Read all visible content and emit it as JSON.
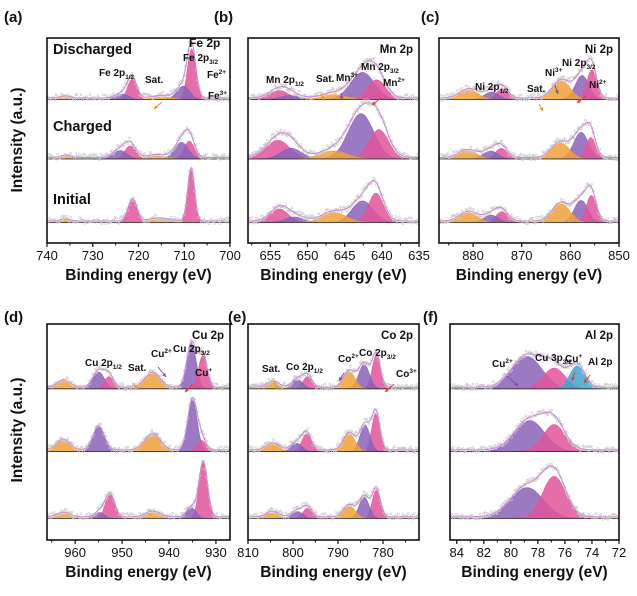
{
  "figure": {
    "shared_ylabel": "Intensity (a.u.)",
    "colors": {
      "envelope": "#c98fcf",
      "raw": "#c9c9c9",
      "baseline": "#2e2e2e",
      "pink_fill": "#e0559b",
      "purple_fill": "#8a62b8",
      "orange_fill": "#f0a13a",
      "blue_fill": "#3fa6cf",
      "arrow_red": "#e03b3b",
      "arrow_purple": "#7a4fb0",
      "arrow_orange": "#e8902a"
    }
  },
  "chart_data": [
    {
      "panel": "(a)",
      "type": "line",
      "title": "Fe 2p",
      "xlabel": "Binding energy (eV)",
      "ylabel": "Intensity (a.u.)",
      "xlim": [
        740,
        700
      ],
      "xticks": [
        740,
        730,
        720,
        710,
        700
      ],
      "trace_labels": [
        "Discharged",
        "Charged",
        "Initial"
      ],
      "annotations": [
        {
          "text": "Fe 2p",
          "sub": "",
          "sup": "",
          "x": 710
        },
        {
          "text": "Fe 2p",
          "sub": "3/2",
          "sup": "",
          "x": 710
        },
        {
          "text": "Fe 2p",
          "sub": "1/2",
          "sup": "",
          "x": 724
        },
        {
          "text": "Sat.",
          "sub": "",
          "sup": "",
          "x": 716
        },
        {
          "text": "Fe",
          "sub": "",
          "sup": "2+",
          "x": 707
        },
        {
          "text": "Fe",
          "sub": "",
          "sup": "3+",
          "x": 707
        }
      ],
      "traces": [
        {
          "name": "Discharged",
          "peaks": [
            {
              "c": 708.4,
              "h": 0.95,
              "w": 0.9,
              "color": "pink"
            },
            {
              "c": 710.2,
              "h": 0.25,
              "w": 1.4,
              "color": "purple"
            },
            {
              "c": 721.4,
              "h": 0.38,
              "w": 1.0,
              "color": "pink"
            },
            {
              "c": 723.5,
              "h": 0.1,
              "w": 1.4,
              "color": "purple"
            },
            {
              "c": 714.8,
              "h": 0.05,
              "w": 2.0,
              "color": "orange"
            },
            {
              "c": 736.0,
              "h": 0.04,
              "w": 1.0,
              "color": "orange"
            }
          ]
        },
        {
          "name": "Charged",
          "peaks": [
            {
              "c": 708.9,
              "h": 0.3,
              "w": 1.1,
              "color": "pink"
            },
            {
              "c": 710.6,
              "h": 0.28,
              "w": 1.5,
              "color": "purple"
            },
            {
              "c": 721.8,
              "h": 0.22,
              "w": 1.2,
              "color": "pink"
            },
            {
              "c": 724.0,
              "h": 0.14,
              "w": 1.5,
              "color": "purple"
            },
            {
              "c": 715.8,
              "h": 0.05,
              "w": 2.0,
              "color": "orange"
            },
            {
              "c": 736.0,
              "h": 0.04,
              "w": 1.0,
              "color": "orange"
            }
          ]
        },
        {
          "name": "Initial",
          "peaks": [
            {
              "c": 708.5,
              "h": 1.0,
              "w": 0.75,
              "color": "pink"
            },
            {
              "c": 721.3,
              "h": 0.42,
              "w": 0.95,
              "color": "pink"
            },
            {
              "c": 715.5,
              "h": 0.06,
              "w": 2.0,
              "color": "orange"
            },
            {
              "c": 736.0,
              "h": 0.04,
              "w": 1.0,
              "color": "orange"
            }
          ]
        }
      ]
    },
    {
      "panel": "(b)",
      "type": "line",
      "title": "Mn 2p",
      "xlabel": "Binding energy (eV)",
      "xlim": [
        658,
        635
      ],
      "xticks": [
        655,
        650,
        645,
        640,
        635
      ],
      "annotations": [
        {
          "text": "Mn 2p",
          "sub": "1/2",
          "sup": "",
          "x": 653
        },
        {
          "text": "Sat.",
          "sub": "",
          "sup": "",
          "x": 647
        },
        {
          "text": "Mn",
          "sub": "",
          "sup": "3+",
          "x": 643
        },
        {
          "text": "Mn 2p",
          "sub": "3/2",
          "sup": "",
          "x": 642
        },
        {
          "text": "Mn",
          "sub": "",
          "sup": "2+",
          "x": 640
        }
      ],
      "traces": [
        {
          "name": "Discharged",
          "peaks": [
            {
              "c": 642.6,
              "h": 0.55,
              "w": 1.6,
              "color": "purple"
            },
            {
              "c": 640.7,
              "h": 0.4,
              "w": 1.2,
              "color": "pink"
            },
            {
              "c": 653.8,
              "h": 0.18,
              "w": 1.3,
              "color": "pink"
            },
            {
              "c": 652.4,
              "h": 0.08,
              "w": 1.3,
              "color": "purple"
            },
            {
              "c": 646.5,
              "h": 0.1,
              "w": 1.6,
              "color": "orange"
            }
          ]
        },
        {
          "name": "Charged",
          "peaks": [
            {
              "c": 642.8,
              "h": 0.85,
              "w": 1.7,
              "color": "purple"
            },
            {
              "c": 640.4,
              "h": 0.55,
              "w": 1.3,
              "color": "pink"
            },
            {
              "c": 654.0,
              "h": 0.35,
              "w": 1.6,
              "color": "pink"
            },
            {
              "c": 652.2,
              "h": 0.2,
              "w": 1.4,
              "color": "purple"
            },
            {
              "c": 646.5,
              "h": 0.15,
              "w": 1.8,
              "color": "orange"
            }
          ]
        },
        {
          "name": "Initial",
          "peaks": [
            {
              "c": 642.6,
              "h": 0.48,
              "w": 1.4,
              "color": "purple"
            },
            {
              "c": 640.8,
              "h": 0.65,
              "w": 1.0,
              "color": "pink"
            },
            {
              "c": 653.8,
              "h": 0.3,
              "w": 1.2,
              "color": "pink"
            },
            {
              "c": 651.8,
              "h": 0.12,
              "w": 1.3,
              "color": "purple"
            },
            {
              "c": 646.4,
              "h": 0.22,
              "w": 1.6,
              "color": "orange"
            }
          ]
        }
      ]
    },
    {
      "panel": "(c)",
      "type": "line",
      "title": "Ni 2p",
      "xlabel": "Binding energy (eV)",
      "xlim": [
        887,
        850
      ],
      "xticks": [
        880,
        870,
        860,
        850
      ],
      "annotations": [
        {
          "text": "Ni 2p",
          "sub": "1/2",
          "sup": "",
          "x": 875
        },
        {
          "text": "Sat.",
          "sub": "",
          "sup": "",
          "x": 862
        },
        {
          "text": "Ni",
          "sub": "",
          "sup": "3+",
          "x": 858
        },
        {
          "text": "Ni 2p",
          "sub": "3/2",
          "sup": "",
          "x": 857
        },
        {
          "text": "Ni",
          "sub": "",
          "sup": "2+",
          "x": 855
        }
      ],
      "traces": [
        {
          "name": "Discharged",
          "peaks": [
            {
              "c": 857.6,
              "h": 0.45,
              "w": 1.4,
              "color": "purple"
            },
            {
              "c": 855.6,
              "h": 0.55,
              "w": 1.0,
              "color": "pink"
            },
            {
              "c": 861.8,
              "h": 0.35,
              "w": 1.8,
              "color": "orange"
            },
            {
              "c": 874.0,
              "h": 0.2,
              "w": 1.2,
              "color": "pink"
            },
            {
              "c": 876.2,
              "h": 0.14,
              "w": 1.5,
              "color": "purple"
            },
            {
              "c": 880.8,
              "h": 0.18,
              "w": 1.8,
              "color": "orange"
            }
          ]
        },
        {
          "name": "Charged",
          "peaks": [
            {
              "c": 857.8,
              "h": 0.5,
              "w": 1.5,
              "color": "purple"
            },
            {
              "c": 855.8,
              "h": 0.4,
              "w": 1.0,
              "color": "pink"
            },
            {
              "c": 862.0,
              "h": 0.3,
              "w": 1.8,
              "color": "orange"
            },
            {
              "c": 874.2,
              "h": 0.2,
              "w": 1.2,
              "color": "pink"
            },
            {
              "c": 876.4,
              "h": 0.15,
              "w": 1.5,
              "color": "purple"
            },
            {
              "c": 881.0,
              "h": 0.15,
              "w": 1.8,
              "color": "orange"
            }
          ]
        },
        {
          "name": "Initial",
          "peaks": [
            {
              "c": 857.8,
              "h": 0.45,
              "w": 1.4,
              "color": "purple"
            },
            {
              "c": 855.7,
              "h": 0.55,
              "w": 1.0,
              "color": "pink"
            },
            {
              "c": 861.9,
              "h": 0.38,
              "w": 1.8,
              "color": "orange"
            },
            {
              "c": 874.1,
              "h": 0.22,
              "w": 1.2,
              "color": "pink"
            },
            {
              "c": 876.3,
              "h": 0.15,
              "w": 1.5,
              "color": "purple"
            },
            {
              "c": 880.9,
              "h": 0.2,
              "w": 1.8,
              "color": "orange"
            }
          ]
        }
      ]
    },
    {
      "panel": "(d)",
      "type": "line",
      "title": "Cu 2p",
      "xlabel": "Binding energy (eV)",
      "xlim": [
        966,
        927
      ],
      "xticks": [
        960,
        950,
        940,
        930
      ],
      "annotations": [
        {
          "text": "Cu 2p",
          "sub": "1/2",
          "sup": "",
          "x": 954
        },
        {
          "text": "Sat.",
          "sub": "",
          "sup": "",
          "x": 944
        },
        {
          "text": "Cu",
          "sub": "",
          "sup": "2+",
          "x": 936
        },
        {
          "text": "Cu 2p",
          "sub": "3/2",
          "sup": "",
          "x": 934
        },
        {
          "text": "Cu",
          "sub": "",
          "sup": "+",
          "x": 932
        }
      ],
      "traces": [
        {
          "name": "Discharged",
          "peaks": [
            {
              "c": 935.2,
              "h": 0.75,
              "w": 1.0,
              "color": "purple"
            },
            {
              "c": 932.8,
              "h": 0.55,
              "w": 0.9,
              "color": "pink"
            },
            {
              "c": 955.0,
              "h": 0.28,
              "w": 1.2,
              "color": "purple"
            },
            {
              "c": 952.8,
              "h": 0.2,
              "w": 1.0,
              "color": "pink"
            },
            {
              "c": 943.5,
              "h": 0.25,
              "w": 1.6,
              "color": "orange"
            },
            {
              "c": 962.5,
              "h": 0.12,
              "w": 1.4,
              "color": "orange"
            }
          ]
        },
        {
          "name": "Charged",
          "peaks": [
            {
              "c": 935.0,
              "h": 0.85,
              "w": 1.0,
              "color": "purple"
            },
            {
              "c": 933.0,
              "h": 0.18,
              "w": 0.9,
              "color": "pink"
            },
            {
              "c": 955.0,
              "h": 0.4,
              "w": 1.2,
              "color": "purple"
            },
            {
              "c": 943.5,
              "h": 0.28,
              "w": 1.6,
              "color": "orange"
            },
            {
              "c": 962.5,
              "h": 0.18,
              "w": 1.4,
              "color": "orange"
            }
          ]
        },
        {
          "name": "Initial",
          "peaks": [
            {
              "c": 932.7,
              "h": 0.95,
              "w": 0.9,
              "color": "pink"
            },
            {
              "c": 935.2,
              "h": 0.18,
              "w": 1.0,
              "color": "purple"
            },
            {
              "c": 952.6,
              "h": 0.4,
              "w": 1.0,
              "color": "pink"
            },
            {
              "c": 954.8,
              "h": 0.1,
              "w": 1.0,
              "color": "purple"
            },
            {
              "c": 943.5,
              "h": 0.1,
              "w": 1.6,
              "color": "orange"
            },
            {
              "c": 962.5,
              "h": 0.08,
              "w": 1.4,
              "color": "orange"
            }
          ]
        }
      ]
    },
    {
      "panel": "(e)",
      "type": "line",
      "title": "Co 2p",
      "xlabel": "Binding energy (eV)",
      "xlim": [
        810,
        772
      ],
      "xticks": [
        810,
        800,
        790,
        780
      ],
      "annotations": [
        {
          "text": "Sat.",
          "sub": "",
          "sup": "",
          "x": 804
        },
        {
          "text": "Co 2p",
          "sub": "1/2",
          "sup": "",
          "x": 797
        },
        {
          "text": "Co",
          "sub": "",
          "sup": "2+",
          "x": 787
        },
        {
          "text": "Co 2p",
          "sub": "3/2",
          "sup": "",
          "x": 783
        },
        {
          "text": "Co",
          "sub": "",
          "sup": "3+",
          "x": 781
        }
      ],
      "traces": [
        {
          "name": "Discharged",
          "peaks": [
            {
              "c": 781.5,
              "h": 0.55,
              "w": 0.9,
              "color": "pink"
            },
            {
              "c": 784.2,
              "h": 0.4,
              "w": 1.2,
              "color": "purple"
            },
            {
              "c": 787.5,
              "h": 0.28,
              "w": 1.3,
              "color": "orange"
            },
            {
              "c": 796.8,
              "h": 0.2,
              "w": 1.0,
              "color": "pink"
            },
            {
              "c": 799.0,
              "h": 0.15,
              "w": 1.2,
              "color": "purple"
            },
            {
              "c": 804.5,
              "h": 0.1,
              "w": 1.4,
              "color": "orange"
            }
          ]
        },
        {
          "name": "Charged",
          "peaks": [
            {
              "c": 781.6,
              "h": 0.65,
              "w": 0.9,
              "color": "pink"
            },
            {
              "c": 784.0,
              "h": 0.45,
              "w": 1.1,
              "color": "purple"
            },
            {
              "c": 787.5,
              "h": 0.3,
              "w": 1.3,
              "color": "orange"
            },
            {
              "c": 797.0,
              "h": 0.3,
              "w": 1.0,
              "color": "pink"
            },
            {
              "c": 799.2,
              "h": 0.14,
              "w": 1.2,
              "color": "purple"
            },
            {
              "c": 804.5,
              "h": 0.12,
              "w": 1.4,
              "color": "orange"
            }
          ]
        },
        {
          "name": "Initial",
          "peaks": [
            {
              "c": 781.5,
              "h": 0.5,
              "w": 0.9,
              "color": "pink"
            },
            {
              "c": 784.2,
              "h": 0.38,
              "w": 1.1,
              "color": "purple"
            },
            {
              "c": 787.5,
              "h": 0.22,
              "w": 1.3,
              "color": "orange"
            },
            {
              "c": 796.8,
              "h": 0.18,
              "w": 1.0,
              "color": "pink"
            },
            {
              "c": 799.0,
              "h": 0.12,
              "w": 1.2,
              "color": "purple"
            },
            {
              "c": 804.5,
              "h": 0.1,
              "w": 1.4,
              "color": "orange"
            }
          ]
        }
      ]
    },
    {
      "panel": "(f)",
      "type": "line",
      "title": "Al 2p",
      "xlabel": "Binding energy (eV)",
      "xlim": [
        84.5,
        72
      ],
      "xticks": [
        84,
        82,
        80,
        78,
        76,
        74,
        72
      ],
      "annotations": [
        {
          "text": "Cu",
          "sub": "",
          "sup": "2+",
          "x": 79
        },
        {
          "text": "Cu 3p",
          "sub": "3/2",
          "sup": "",
          "x": 77
        },
        {
          "text": "Cu",
          "sub": "",
          "sup": "+",
          "x": 75.5
        },
        {
          "text": "Al 2p",
          "sub": "",
          "sup": "",
          "x": 74
        }
      ],
      "traces": [
        {
          "name": "Discharged",
          "peaks": [
            {
              "c": 78.8,
              "h": 0.5,
              "w": 1.1,
              "color": "purple"
            },
            {
              "c": 76.8,
              "h": 0.32,
              "w": 0.8,
              "color": "pink"
            },
            {
              "c": 75.1,
              "h": 0.35,
              "w": 0.55,
              "color": "blue"
            }
          ]
        },
        {
          "name": "Charged",
          "peaks": [
            {
              "c": 78.6,
              "h": 0.55,
              "w": 1.1,
              "color": "purple"
            },
            {
              "c": 76.8,
              "h": 0.48,
              "w": 0.8,
              "color": "pink"
            }
          ]
        },
        {
          "name": "Initial",
          "peaks": [
            {
              "c": 78.8,
              "h": 0.55,
              "w": 1.2,
              "color": "purple"
            },
            {
              "c": 76.8,
              "h": 0.75,
              "w": 0.85,
              "color": "pink"
            }
          ]
        }
      ]
    }
  ]
}
